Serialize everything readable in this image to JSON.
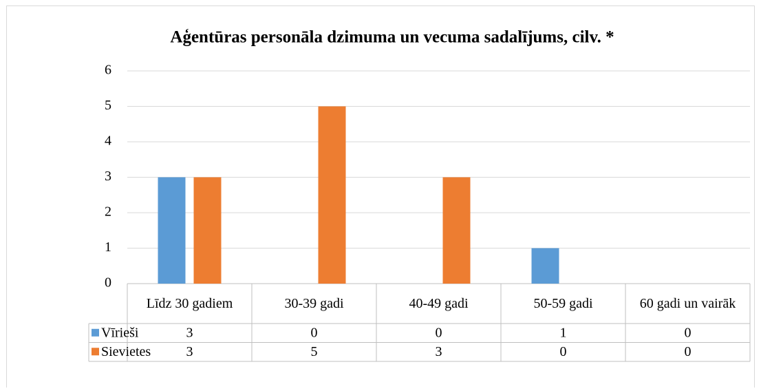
{
  "chart_data": {
    "type": "bar",
    "title": "Aģentūras personāla dzimuma un vecuma sadalījums, cilv. *",
    "categories": [
      "Līdz 30 gadiem",
      "30-39 gadi",
      "40-49 gadi",
      "50-59 gadi",
      "60 gadi un vairāk"
    ],
    "series": [
      {
        "name": "Vīrieši",
        "color": "#5b9bd5",
        "values": [
          3,
          0,
          0,
          1,
          0
        ]
      },
      {
        "name": "Sievietes",
        "color": "#ed7d31",
        "values": [
          3,
          5,
          3,
          0,
          0
        ]
      }
    ],
    "ylim": [
      0,
      6
    ],
    "yticks": [
      0,
      1,
      2,
      3,
      4,
      5,
      6
    ],
    "grid": true
  }
}
